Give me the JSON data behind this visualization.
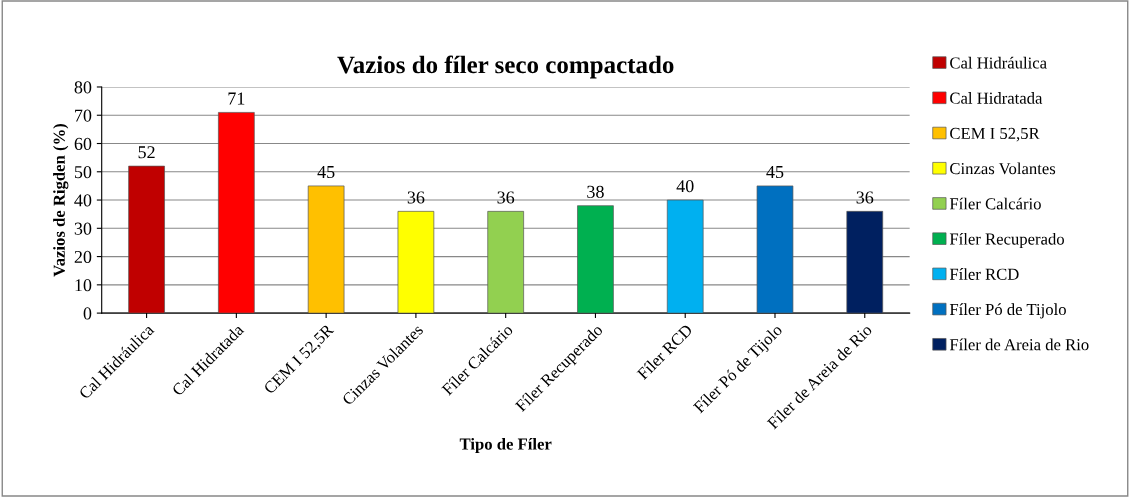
{
  "chart_data": {
    "type": "bar",
    "title": "Vazios do fíler seco compactado",
    "xlabel": "Tipo de Fíler",
    "ylabel": "Vazios de Rigden (%)",
    "categories": [
      "Cal Hidráulica",
      "Cal Hidratada",
      "CEM I 52,5R",
      "Cinzas Volantes",
      "Fíler Calcário",
      "Fíler Recuperado",
      "Fíler RCD",
      "Fíler Pó de Tijolo",
      "Fíler de Areia de Rio"
    ],
    "stacked": true,
    "series": [
      {
        "name": "Cal Hidráulica",
        "color": "#c00000",
        "values": [
          52,
          null,
          null,
          null,
          null,
          null,
          null,
          null,
          null
        ]
      },
      {
        "name": "Cal Hidratada",
        "color": "#ff0000",
        "values": [
          null,
          71,
          null,
          null,
          null,
          null,
          null,
          null,
          null
        ]
      },
      {
        "name": "CEM I 52,5R",
        "color": "#ffc000",
        "values": [
          null,
          null,
          45,
          null,
          null,
          null,
          null,
          null,
          null
        ]
      },
      {
        "name": "Cinzas Volantes",
        "color": "#ffff00",
        "values": [
          null,
          null,
          null,
          36,
          null,
          null,
          null,
          null,
          null
        ]
      },
      {
        "name": "Fíler Calcário",
        "color": "#92d050",
        "values": [
          null,
          null,
          null,
          null,
          36,
          null,
          null,
          null,
          null
        ]
      },
      {
        "name": "Fíler Recuperado",
        "color": "#00b050",
        "values": [
          null,
          null,
          null,
          null,
          null,
          38,
          null,
          null,
          null
        ]
      },
      {
        "name": "Fíler RCD",
        "color": "#00b0f0",
        "values": [
          null,
          null,
          null,
          null,
          null,
          null,
          40,
          null,
          null
        ]
      },
      {
        "name": "Fíler Pó de Tijolo",
        "color": "#0070c0",
        "values": [
          null,
          null,
          null,
          null,
          null,
          null,
          null,
          45,
          null
        ]
      },
      {
        "name": "Fíler de Areia de Rio",
        "color": "#002060",
        "values": [
          null,
          null,
          null,
          null,
          null,
          null,
          null,
          null,
          36
        ]
      }
    ],
    "ylim": [
      0,
      80
    ],
    "yticks": [
      0,
      10,
      20,
      30,
      40,
      50,
      60,
      70,
      80
    ],
    "grid": "y",
    "legend": "right",
    "data_labels": true
  }
}
